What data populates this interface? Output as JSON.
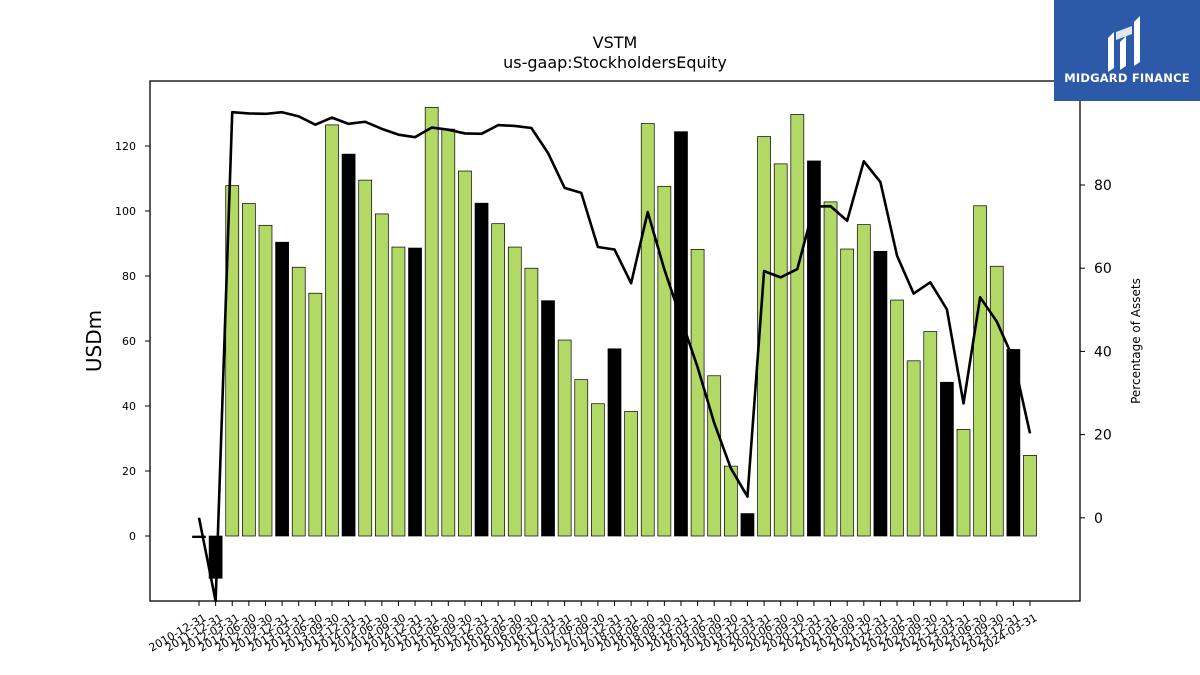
{
  "chart_data": {
    "type": "bar",
    "title": "VSTM",
    "subtitle": "us-gaap:StockholdersEquity",
    "ylabel": "USDm",
    "y2label": "Percentage of Assets",
    "ylim": [
      -20,
      140
    ],
    "y2lim": [
      -20,
      105
    ],
    "yticks": [
      0,
      20,
      40,
      60,
      80,
      100,
      120
    ],
    "y2ticks": [
      0,
      20,
      40,
      60,
      80
    ],
    "colors": {
      "bar": "#b2d965",
      "bar_q4": "#000000",
      "line": "#000000"
    },
    "categories": [
      "2010-12-31",
      "2011-12-31",
      "2012-03-31",
      "2012-06-30",
      "2012-09-30",
      "2012-12-31",
      "2013-03-31",
      "2013-06-30",
      "2013-09-30",
      "2013-12-31",
      "2014-03-31",
      "2014-06-30",
      "2014-09-30",
      "2014-12-31",
      "2015-03-31",
      "2015-06-30",
      "2015-09-30",
      "2015-12-31",
      "2016-03-31",
      "2016-06-30",
      "2016-09-30",
      "2016-12-31",
      "2017-03-31",
      "2017-06-30",
      "2017-09-30",
      "2017-12-31",
      "2018-03-31",
      "2018-06-30",
      "2018-09-30",
      "2018-12-31",
      "2019-03-31",
      "2019-06-30",
      "2019-09-30",
      "2019-12-31",
      "2020-03-31",
      "2020-06-30",
      "2020-09-30",
      "2020-12-31",
      "2021-03-31",
      "2021-06-30",
      "2021-09-30",
      "2021-12-31",
      "2022-03-31",
      "2022-06-30",
      "2022-09-30",
      "2022-12-31",
      "2023-03-31",
      "2023-06-30",
      "2023-09-30",
      "2023-12-31",
      "2024-03-31"
    ],
    "tick_labels": [
      "2010-12-31",
      "2011-12-31",
      "2012-03-31",
      "2012-06-30",
      "2012-09-30",
      "2012-12-31",
      "2013-03-31",
      "2013-06-30",
      "2013-09-30",
      "2013-12-31",
      "2014-03-31",
      "2014-06-30",
      "2014-09-30",
      "2014-12-31",
      "2015-03-31",
      "2015-06-30",
      "2015-09-30",
      "2015-12-31",
      "2016-03-31",
      "2016-06-30",
      "2016-09-30",
      "2016-12-31",
      "2017-03-31",
      "2017-06-30",
      "2017-09-30",
      "2017-12-31",
      "2018-03-31",
      "2018-06-30",
      "2018-09-30",
      "2018-12-31",
      "2019-03-31",
      "2019-06-30",
      "2019-09-30",
      "2019-12-31",
      "2020-03-31",
      "2020-06-30",
      "2020-09-30",
      "2020-12-31",
      "2021-03-31",
      "2021-06-30",
      "2021-09-30",
      "2021-12-31",
      "2022-03-31",
      "2022-06-30",
      "2022-09-30",
      "2022-12-31",
      "2023-03-31",
      "2023-06-30",
      "2023-09-30",
      "2023-12-31",
      "2024-03-31"
    ],
    "series": [
      {
        "type": "bar",
        "axis": "left",
        "values": [
          -0.5,
          -13,
          107.8,
          102.3,
          95.6,
          90.4,
          82.7,
          74.7,
          126.5,
          117.5,
          109.5,
          99.1,
          88.9,
          88.6,
          131.9,
          125.2,
          112.3,
          102.4,
          96.1,
          88.9,
          82.4,
          72.4,
          60.3,
          48.1,
          40.7,
          57.6,
          38.3,
          126.9,
          107.6,
          124.4,
          88.2,
          49.3,
          21.5,
          6.9,
          122.9,
          114.5,
          129.7,
          115.4,
          102.8,
          88.3,
          95.8,
          87.6,
          72.6,
          53.9,
          62.9,
          47.3,
          32.8,
          101.6,
          83.0,
          57.4,
          24.8
        ]
      },
      {
        "type": "line",
        "axis": "right",
        "values": [
          0,
          -20,
          97.5,
          97.2,
          97.1,
          97.5,
          96.5,
          94.5,
          96.2,
          94.7,
          95.2,
          93.5,
          92.1,
          91.5,
          93.8,
          93.3,
          92.4,
          92.3,
          94.4,
          94.2,
          93.7,
          87.7,
          79.3,
          78.1,
          65.1,
          64.5,
          56.4,
          73.5,
          59.7,
          47.9,
          36.2,
          22.8,
          11.9,
          5.1,
          59.3,
          57.8,
          59.8,
          74.8,
          74.9,
          71.4,
          85.7,
          80.7,
          63,
          53.9,
          56.6,
          50.1,
          27.5,
          53,
          47.2,
          38.2,
          20.3
        ]
      }
    ],
    "grid": false
  },
  "logo": {
    "text": "MIDGARD FINANCE",
    "icon": "midgard-logo-icon"
  }
}
